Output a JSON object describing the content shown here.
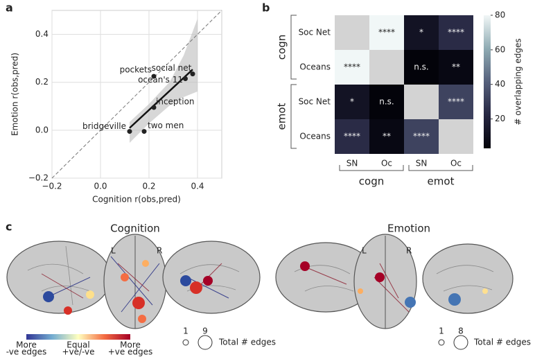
{
  "panel_labels": [
    "a",
    "b",
    "c"
  ],
  "chart_data": [
    {
      "type": "scatter",
      "x_label": "Cognition r(obs,pred)",
      "y_label": "Emotion r(obs,pred)",
      "labels": [
        "bridgeville",
        "two men",
        "inception",
        "pockets",
        "social net",
        "ocean's 11"
      ],
      "x": [
        0.12,
        0.18,
        0.22,
        0.22,
        0.35,
        0.38
      ],
      "y": [
        -0.005,
        -0.005,
        0.095,
        0.225,
        0.215,
        0.235
      ],
      "color": "#222222",
      "xlim": [
        -0.2,
        0.5
      ],
      "ylim": [
        -0.2,
        0.5
      ],
      "xticks": [
        {
          "value": -0.2,
          "label": "−0.2"
        },
        {
          "value": 0,
          "label": "0.0"
        },
        {
          "value": 0.2,
          "label": "0.2"
        },
        {
          "value": 0.4,
          "label": "0.4"
        }
      ],
      "yticks": [
        {
          "value": -0.2,
          "label": "−0.2"
        },
        {
          "value": 0,
          "label": "0.0"
        },
        {
          "value": 0.2,
          "label": "0.2"
        },
        {
          "value": 0.4,
          "label": "0.4"
        }
      ],
      "grid": true
    },
    {
      "type": "heatmap",
      "row_labels": [
        "Soc Net",
        "Oceans",
        "Soc Net",
        "Oceans"
      ],
      "col_labels": [
        "SN",
        "Oc",
        "SN",
        "Oc"
      ],
      "groups": [
        "cogn",
        "emot"
      ],
      "values": [
        [
          null,
          80,
          12,
          24
        ],
        [
          80,
          null,
          3,
          6
        ],
        [
          12,
          3,
          null,
          32
        ],
        [
          24,
          6,
          32,
          null
        ]
      ],
      "annotations": [
        [
          null,
          "****",
          "*",
          "****"
        ],
        [
          "****",
          null,
          "n.s.",
          "**"
        ],
        [
          "*",
          "n.s.",
          null,
          "****"
        ],
        [
          "****",
          "**",
          "****",
          null
        ]
      ],
      "diagonal_color": "#d3d3d3",
      "colormap": [
        "#03030a",
        "#262641",
        "#55607c",
        "#8fabb3",
        "#f1f7f7"
      ],
      "clim": [
        3,
        80
      ],
      "colorbar_label": "# overlapping edges",
      "colorbar_ticks": [
        20,
        40,
        60,
        80
      ]
    }
  ],
  "panel_c": {
    "titles": [
      "Cognition",
      "Emotion"
    ],
    "hemispheres": [
      "L",
      "R"
    ],
    "colorbar_labels": [
      [
        "More",
        "-ve edges"
      ],
      [
        "Equal",
        "+ve/-ve"
      ],
      [
        "More",
        "+ve edges"
      ]
    ],
    "size_legends": [
      {
        "min": 1,
        "max": 9,
        "label": "Total # edges"
      },
      {
        "min": 1,
        "max": 8,
        "label": "Total # edges"
      }
    ]
  }
}
